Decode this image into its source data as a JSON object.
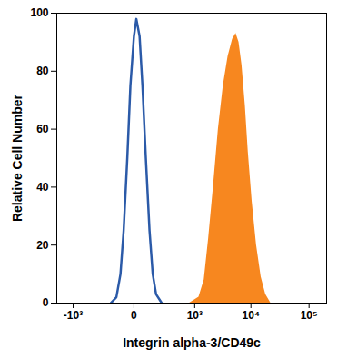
{
  "chart_data": {
    "type": "line",
    "x_label": "Integrin alpha-3/CD49c",
    "y_label": "Relative Cell Number",
    "log": "x",
    "xlim": [
      -2000,
      200000
    ],
    "xticks": [
      {
        "value": -1000,
        "label": "-10³"
      },
      0,
      {
        "value": 1000,
        "label": "10³"
      },
      {
        "value": 10000,
        "label": "10⁴"
      },
      {
        "value": 100000,
        "label": "10⁵"
      }
    ],
    "ylim": [
      0,
      100
    ],
    "yticks": [
      0,
      20,
      40,
      60,
      80,
      100
    ],
    "series": [
      {
        "type": "area",
        "color": "#f7871f",
        "x": [
          800,
          1200,
          1500,
          1800,
          2200,
          2700,
          3300,
          4000,
          4800,
          5500,
          6200,
          7000,
          8000,
          9000,
          10500,
          12500,
          15000,
          18000,
          22000
        ],
        "values": [
          0,
          2,
          8,
          22,
          40,
          60,
          75,
          85,
          91,
          93,
          90,
          82,
          68,
          52,
          35,
          20,
          9,
          3,
          0
        ]
      },
      {
        "type": "line",
        "color": "#2b5aa8",
        "x": [
          -150,
          -100,
          -70,
          -50,
          -30,
          -15,
          0,
          10,
          25,
          40,
          60,
          85,
          110,
          140,
          200
        ],
        "values": [
          0,
          2,
          10,
          25,
          50,
          75,
          92,
          98,
          92,
          75,
          50,
          25,
          10,
          3,
          0
        ]
      }
    ]
  }
}
